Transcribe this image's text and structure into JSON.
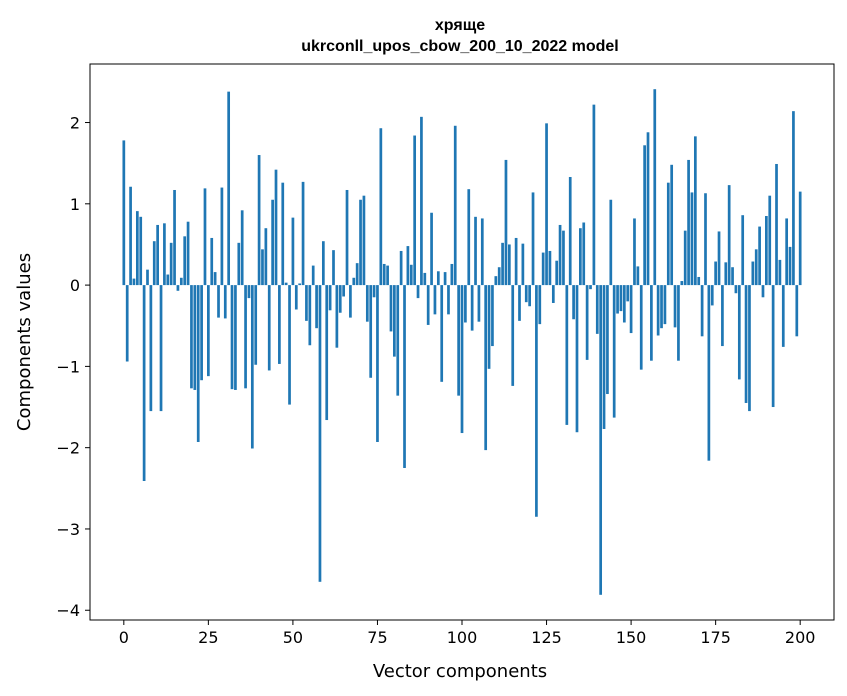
{
  "chart_data": {
    "type": "bar",
    "title_line1": "хряще",
    "title_line2": "ukrconll_upos_cbow_200_10_2022 model",
    "xlabel": "Vector components",
    "ylabel": "Components values",
    "xlim": [
      -10,
      210
    ],
    "ylim": [
      -4.12,
      2.72
    ],
    "xticks": [
      0,
      25,
      50,
      75,
      100,
      125,
      150,
      175,
      200
    ],
    "yticks": [
      -4,
      -3,
      -2,
      -1,
      0,
      1,
      2
    ],
    "grid": false,
    "bar_color": "#1f77b4",
    "values": [
      1.78,
      -0.94,
      1.21,
      0.08,
      0.91,
      0.84,
      -2.41,
      0.19,
      -1.55,
      0.54,
      0.74,
      -1.55,
      0.76,
      0.13,
      0.52,
      1.17,
      -0.07,
      0.09,
      0.6,
      0.78,
      -1.27,
      -1.29,
      -1.93,
      -1.17,
      1.19,
      -1.12,
      0.58,
      0.16,
      -0.4,
      1.2,
      -0.41,
      2.38,
      -1.28,
      -1.29,
      0.52,
      0.92,
      -1.27,
      -0.16,
      -2.01,
      -0.98,
      1.6,
      0.44,
      0.7,
      -1.05,
      1.05,
      1.42,
      -0.97,
      1.26,
      0.03,
      -1.47,
      0.83,
      -0.3,
      0.02,
      1.27,
      -0.44,
      -0.74,
      0.24,
      -0.53,
      -3.65,
      0.54,
      -1.66,
      -0.31,
      0.43,
      -0.77,
      -0.34,
      -0.14,
      1.17,
      -0.4,
      0.09,
      0.27,
      1.05,
      1.1,
      -0.45,
      -1.14,
      -0.15,
      -1.93,
      1.93,
      0.26,
      0.24,
      -0.57,
      -0.88,
      -1.36,
      0.42,
      -2.25,
      0.48,
      0.25,
      1.84,
      -0.16,
      2.07,
      0.15,
      -0.49,
      0.89,
      -0.36,
      0.17,
      -1.19,
      0.16,
      -0.36,
      0.26,
      1.96,
      -1.36,
      -1.82,
      -0.46,
      1.18,
      -0.56,
      0.84,
      -0.45,
      0.82,
      -2.03,
      -1.03,
      -0.75,
      0.11,
      0.22,
      0.52,
      1.54,
      0.5,
      -1.24,
      0.58,
      -0.44,
      0.51,
      -0.21,
      -0.26,
      1.14,
      -2.85,
      -0.48,
      0.4,
      1.99,
      0.42,
      -0.22,
      0.3,
      0.74,
      0.67,
      -1.72,
      1.33,
      -0.42,
      -1.81,
      0.7,
      0.77,
      -0.92,
      -0.05,
      2.22,
      -0.6,
      -3.81,
      -1.77,
      -1.34,
      1.05,
      -1.63,
      -0.35,
      -0.32,
      -0.46,
      -0.2,
      -0.59,
      0.82,
      0.23,
      -1.04,
      1.72,
      1.88,
      -0.93,
      2.41,
      -0.62,
      -0.53,
      -0.48,
      1.26,
      1.48,
      -0.52,
      -0.93,
      0.05,
      0.67,
      1.54,
      1.14,
      1.83,
      0.1,
      -0.63,
      1.13,
      -2.16,
      -0.25,
      0.29,
      0.66,
      -0.75,
      0.28,
      1.23,
      0.22,
      -0.1,
      -1.16,
      0.86,
      -1.45,
      -1.55,
      0.29,
      0.44,
      0.72,
      -0.15,
      0.85,
      1.1,
      -1.5,
      1.49,
      0.31,
      -0.76,
      0.82,
      0.47,
      2.14,
      -0.63,
      1.15
    ]
  }
}
